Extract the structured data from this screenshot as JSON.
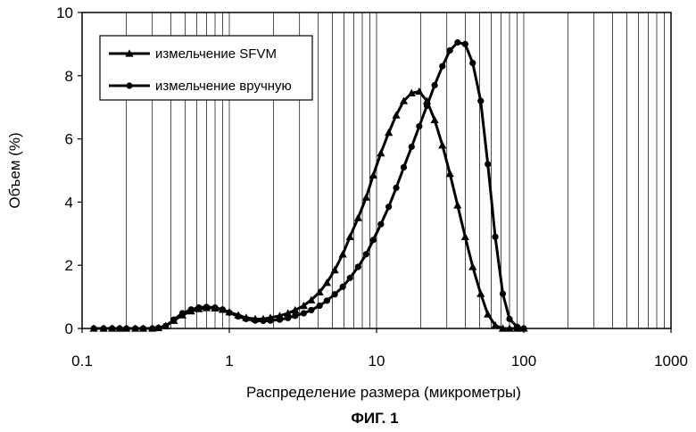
{
  "chart_data": {
    "type": "line",
    "xscale": "log",
    "xlim": [
      0.1,
      1000
    ],
    "ylim": [
      0,
      10
    ],
    "xlabel": "Распределение размера (микрометры)",
    "ylabel": "Объем (%)",
    "xticks": [
      0.1,
      1,
      10,
      100,
      1000
    ],
    "xtick_labels": [
      "0.1",
      "1",
      "10",
      "100",
      "1000"
    ],
    "yticks": [
      0,
      2,
      4,
      6,
      8,
      10
    ],
    "ytick_labels": [
      "0",
      "2",
      "4",
      "6",
      "8",
      "10"
    ],
    "grid": "vertical log gridlines",
    "legend_position": "top-left",
    "caption": "ФИГ. 1",
    "series": [
      {
        "name": "измельчение SFVM",
        "marker": "triangle",
        "color": "#000000",
        "x": [
          0.12,
          0.14,
          0.16,
          0.18,
          0.2,
          0.23,
          0.26,
          0.3,
          0.33,
          0.37,
          0.42,
          0.48,
          0.55,
          0.62,
          0.7,
          0.8,
          0.9,
          1.0,
          1.15,
          1.3,
          1.5,
          1.7,
          1.9,
          2.2,
          2.5,
          2.8,
          3.2,
          3.6,
          4.1,
          4.6,
          5.2,
          5.9,
          6.6,
          7.5,
          8.5,
          9.5,
          10.7,
          12.1,
          13.6,
          15.3,
          17.3,
          19.5,
          22,
          24.8,
          28,
          31.5,
          35.5,
          40,
          45,
          51,
          57,
          64,
          72,
          80,
          90,
          100
        ],
        "values": [
          0.0,
          0.0,
          0.0,
          0.0,
          0.0,
          0.0,
          0.0,
          0.0,
          0.02,
          0.08,
          0.25,
          0.42,
          0.55,
          0.62,
          0.65,
          0.64,
          0.6,
          0.52,
          0.42,
          0.34,
          0.3,
          0.3,
          0.34,
          0.4,
          0.48,
          0.58,
          0.72,
          0.9,
          1.15,
          1.45,
          1.85,
          2.35,
          2.9,
          3.5,
          4.15,
          4.85,
          5.55,
          6.2,
          6.75,
          7.2,
          7.45,
          7.5,
          7.2,
          6.6,
          5.8,
          4.9,
          3.9,
          2.9,
          1.95,
          1.1,
          0.45,
          0.1,
          0.0,
          0.0,
          0.0,
          0.0
        ]
      },
      {
        "name": "измельчение вручную",
        "marker": "circle",
        "color": "#000000",
        "x": [
          0.12,
          0.14,
          0.16,
          0.18,
          0.2,
          0.23,
          0.26,
          0.3,
          0.33,
          0.37,
          0.42,
          0.48,
          0.55,
          0.62,
          0.7,
          0.8,
          0.9,
          1.0,
          1.15,
          1.3,
          1.5,
          1.7,
          1.9,
          2.2,
          2.5,
          2.8,
          3.2,
          3.6,
          4.1,
          4.6,
          5.2,
          5.9,
          6.6,
          7.5,
          8.5,
          9.5,
          10.7,
          12.1,
          13.6,
          15.3,
          17.3,
          19.5,
          22,
          24.8,
          28,
          31.5,
          35.5,
          40,
          45,
          51,
          57,
          64,
          72,
          80,
          90,
          100
        ],
        "values": [
          0.0,
          0.0,
          0.0,
          0.0,
          0.0,
          0.0,
          0.0,
          0.0,
          0.02,
          0.08,
          0.28,
          0.48,
          0.6,
          0.66,
          0.68,
          0.66,
          0.6,
          0.5,
          0.38,
          0.3,
          0.25,
          0.24,
          0.25,
          0.28,
          0.33,
          0.4,
          0.48,
          0.58,
          0.72,
          0.88,
          1.08,
          1.32,
          1.6,
          1.95,
          2.35,
          2.8,
          3.3,
          3.85,
          4.45,
          5.1,
          5.75,
          6.4,
          7.05,
          7.7,
          8.3,
          8.8,
          9.05,
          9.0,
          8.4,
          7.2,
          5.2,
          2.9,
          1.1,
          0.3,
          0.05,
          0.0
        ]
      }
    ]
  }
}
